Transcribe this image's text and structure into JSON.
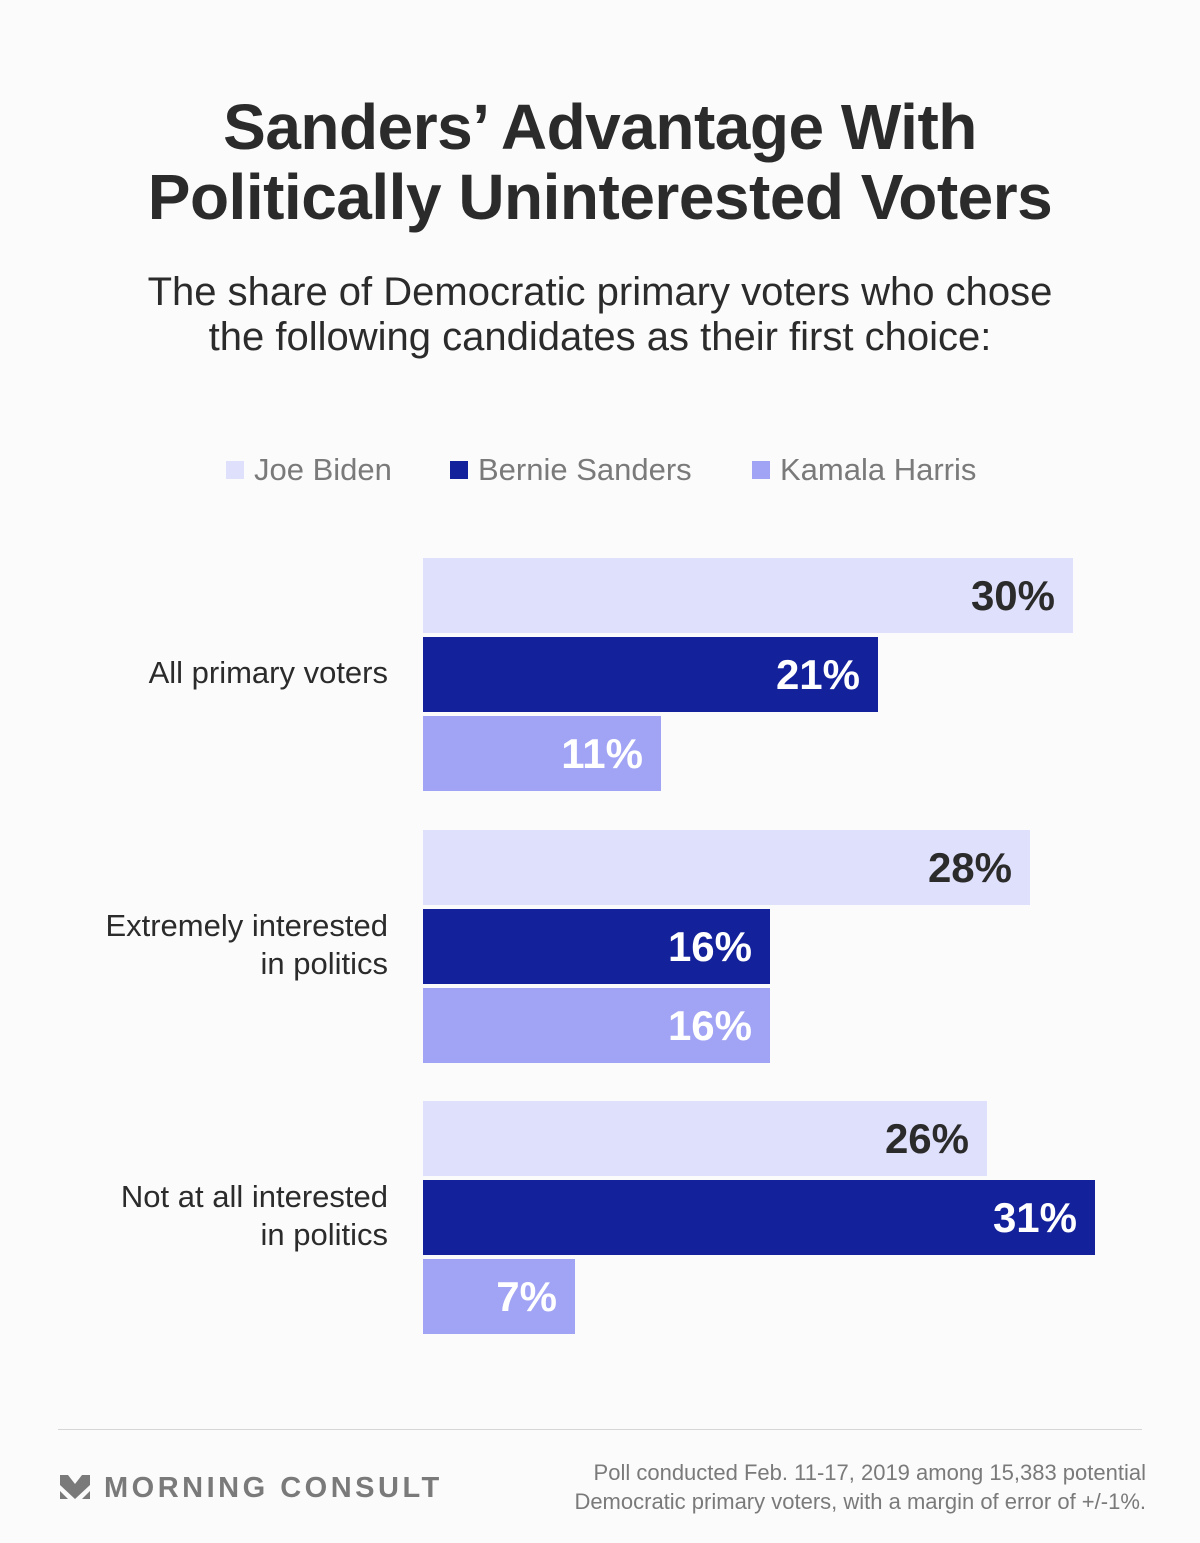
{
  "header": {
    "title_line1": "Sanders’ Advantage With",
    "title_line2": "Politically Uninterested Voters",
    "subtitle_line1": "The share of Democratic primary voters who chose",
    "subtitle_line2": "the following candidates as their first choice:"
  },
  "colors": {
    "biden": "#dfe0fb",
    "sanders": "#13219b",
    "harris": "#a1a3f4",
    "dark_text": "#2b2b2b",
    "light_text": "#ffffff"
  },
  "chart_data": {
    "type": "bar",
    "orientation": "horizontal",
    "title": "Sanders’ Advantage With Politically Uninterested Voters",
    "subtitle": "The share of Democratic primary voters who chose the following candidates as their first choice:",
    "categories": [
      "All primary voters",
      "Extremely interested in politics",
      "Not at all interested in politics"
    ],
    "category_lines": [
      [
        "All primary voters"
      ],
      [
        "Extremely interested",
        "in politics"
      ],
      [
        "Not at all interested",
        "in politics"
      ]
    ],
    "series": [
      {
        "name": "Joe Biden",
        "color": "#dfe0fb",
        "label_color": "#2b2b2b",
        "values": [
          30,
          28,
          26
        ]
      },
      {
        "name": "Bernie Sanders",
        "color": "#13219b",
        "label_color": "#ffffff",
        "values": [
          21,
          16,
          31
        ]
      },
      {
        "name": "Kamala Harris",
        "color": "#a1a3f4",
        "label_color": "#ffffff",
        "values": [
          11,
          16,
          7
        ]
      }
    ],
    "value_suffix": "%",
    "xlim": [
      0,
      31
    ],
    "grid": false,
    "legend": "top-center",
    "xlabel": "",
    "ylabel": ""
  },
  "legend": {
    "items": [
      {
        "label": "Joe Biden",
        "color": "#dfe0fb"
      },
      {
        "label": "Bernie Sanders",
        "color": "#13219b"
      },
      {
        "label": "Kamala Harris",
        "color": "#a1a3f4"
      }
    ]
  },
  "footer": {
    "brand": "MORNING CONSULT",
    "logo_icon": "chevron-m-logo-icon",
    "source_line1": "Poll conducted Feb. 11-17, 2019 among 15,383 potential",
    "source_line2": "Democratic primary voters, with a margin of error of +/-1%."
  }
}
